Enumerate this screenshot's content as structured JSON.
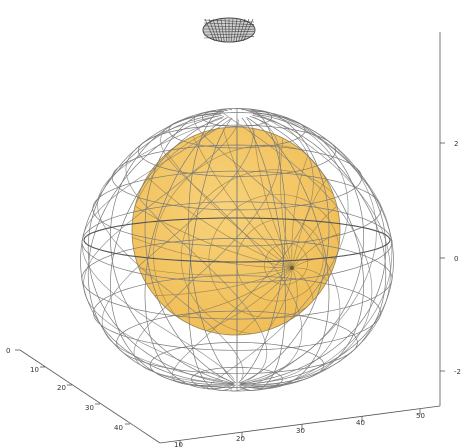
{
  "figure": {
    "type": "3d-wireframe-egg-with-yolk-sphere",
    "shell_color": "#7a7a7a",
    "top_cap_color": "#444444",
    "yolk_fill": "#f6c65a",
    "yolk_stroke": "#9a8450",
    "background": "#ffffff"
  },
  "axes": {
    "left_axis_ticks": [
      "0",
      "10",
      "20",
      "30",
      "40"
    ],
    "bottom_axis_ticks": [
      "10",
      "20",
      "30",
      "40",
      "50"
    ],
    "right_axis_ticks": [
      "2",
      "0",
      "-2"
    ]
  }
}
